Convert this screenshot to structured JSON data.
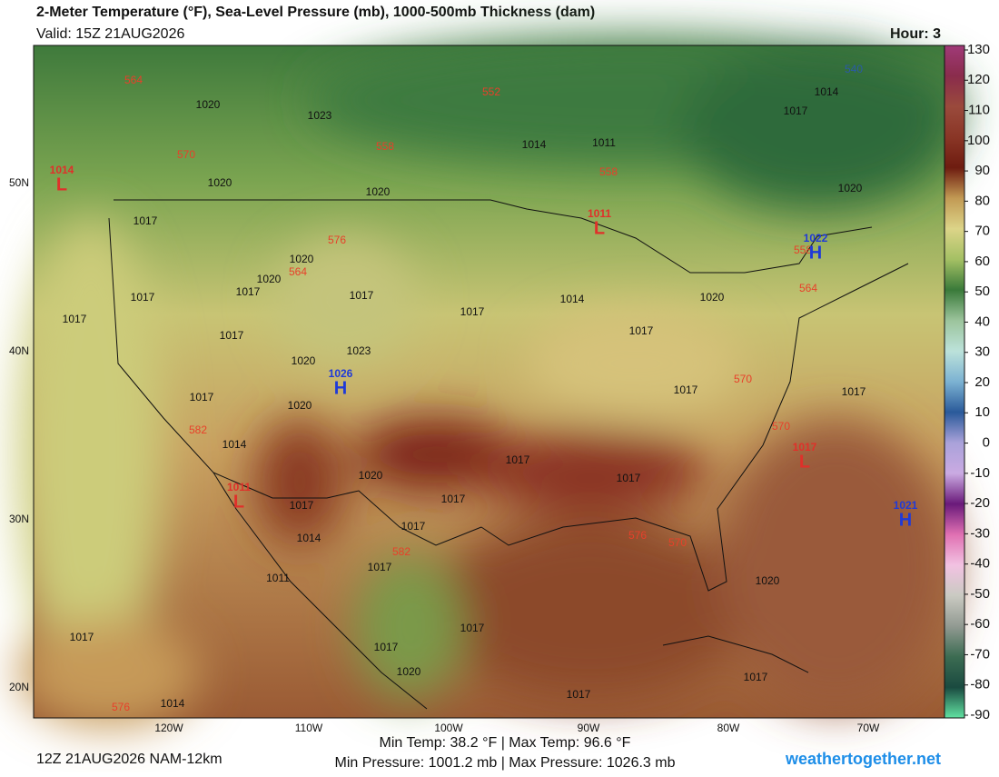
{
  "header": {
    "title": "2-Meter Temperature (°F), Sea-Level Pressure (mb), 1000-500mb Thickness (dam)",
    "valid": "Valid: 15Z 21AUG2026",
    "hour": "Hour: 3"
  },
  "map": {
    "lat_labels": [
      "50N",
      "40N",
      "30N",
      "20N"
    ],
    "lon_labels": [
      "120W",
      "110W",
      "100W",
      "90W",
      "80W",
      "70W"
    ],
    "isobar_labels": [
      "1020",
      "1023",
      "1014",
      "1011",
      "1020",
      "1020",
      "1017",
      "1020",
      "1020",
      "1017",
      "1017",
      "1017",
      "1017",
      "1014",
      "1017",
      "1017",
      "1023",
      "1020",
      "1017",
      "1020",
      "1014",
      "1017",
      "1020",
      "1017",
      "1017",
      "1017",
      "1014",
      "1017",
      "1011",
      "1017",
      "1017",
      "1020",
      "1017",
      "1014",
      "1017",
      "1017",
      "1020",
      "1017",
      "1017",
      "1017",
      "1017",
      "1014",
      "1017",
      "1020",
      "1020"
    ],
    "thickness_labels": [
      "564",
      "552",
      "558",
      "558",
      "570",
      "576",
      "564",
      "582",
      "570",
      "570",
      "564",
      "558",
      "582",
      "576",
      "570",
      "576",
      "540"
    ],
    "pressure_centers": [
      {
        "letter": "H",
        "value": "1026"
      },
      {
        "letter": "H",
        "value": "1022"
      },
      {
        "letter": "H",
        "value": "1021"
      },
      {
        "letter": "L",
        "value": "1011"
      },
      {
        "letter": "L",
        "value": "1017"
      },
      {
        "letter": "L",
        "value": "1014"
      },
      {
        "letter": "L",
        "value": "1011"
      }
    ]
  },
  "colorbar": {
    "ticks": [
      130,
      120,
      110,
      100,
      90,
      80,
      70,
      60,
      50,
      40,
      30,
      20,
      10,
      0,
      -10,
      -20,
      -30,
      -40,
      -50,
      -60,
      -70,
      -80,
      -90
    ],
    "colors": [
      "#a03a78",
      "#8a2c4c",
      "#9a4a3c",
      "#8a3626",
      "#6e1c10",
      "#c29a54",
      "#dcd488",
      "#a4c064",
      "#3a7a3a",
      "#9cc49c",
      "#bce2da",
      "#7cb2d2",
      "#2a5a9a",
      "#aaa2da",
      "#caaae2",
      "#6a1a7a",
      "#e070b2",
      "#f2c2e2",
      "#cacac2",
      "#929a92",
      "#3c6c52",
      "#1a4a40",
      "#62e2a2"
    ]
  },
  "footer": {
    "run": "12Z 21AUG2026 NAM-12km",
    "temps": "Min Temp:  38.2 °F | Max Temp:  96.6 °F",
    "pressures": "Min Pressure: 1001.2 mb | Max Pressure: 1026.3 mb",
    "site": "weathertogether.net"
  }
}
